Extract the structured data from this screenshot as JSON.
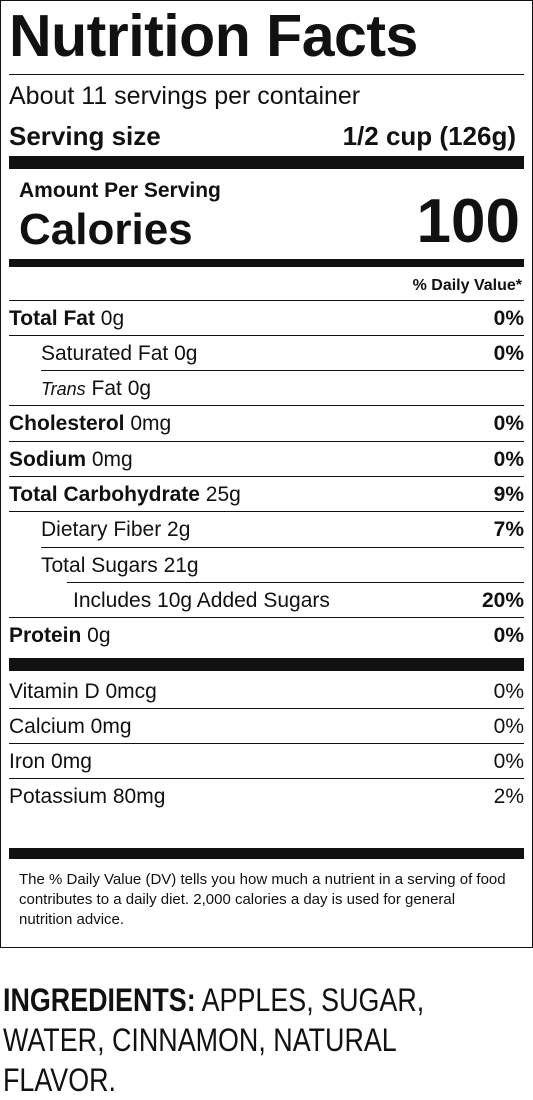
{
  "label": {
    "title": "Nutrition Facts",
    "servings_per_container": "About 11 servings per container",
    "serving_size_label": "Serving size",
    "serving_size_value": "1/2 cup (126g)",
    "amount_per_serving": "Amount Per Serving",
    "calories_label": "Calories",
    "calories_value": "100",
    "daily_value_header": "% Daily Value*",
    "nutrients": [
      {
        "bold": "Total Fat",
        "name": " 0g",
        "dv": "0%"
      },
      {
        "bold": "",
        "name": "Saturated Fat 0g",
        "dv": "0%"
      },
      {
        "italic": "Trans",
        "name": " Fat 0g",
        "dv": ""
      },
      {
        "bold": "Cholesterol",
        "name": " 0mg",
        "dv": "0%"
      },
      {
        "bold": "Sodium",
        "name": " 0mg",
        "dv": "0%"
      },
      {
        "bold": "Total Carbohydrate",
        "name": " 25g",
        "dv": "9%"
      },
      {
        "bold": "",
        "name": "Dietary Fiber 2g",
        "dv": "7%"
      },
      {
        "bold": "",
        "name": "Total Sugars 21g",
        "dv": ""
      },
      {
        "bold": "",
        "name": "Includes 10g Added Sugars",
        "dv": "20%"
      },
      {
        "bold": "Protein",
        "name": " 0g",
        "dv": "0%"
      }
    ],
    "vitamins": [
      {
        "name": "Vitamin D 0mcg",
        "dv": "0%"
      },
      {
        "name": "Calcium 0mg",
        "dv": "0%"
      },
      {
        "name": "Iron 0mg",
        "dv": "0%"
      },
      {
        "name": "Potassium 80mg",
        "dv": "2%"
      }
    ],
    "footnote": "The % Daily Value (DV) tells you how much a nutrient in a serving of food contributes to a daily diet. 2,000 calories a day is used for general nutrition advice."
  },
  "ingredients": {
    "heading": "INGREDIENTS:",
    "text": " APPLES, SUGAR, WATER, CINNAMON, NATURAL FLAVOR."
  }
}
